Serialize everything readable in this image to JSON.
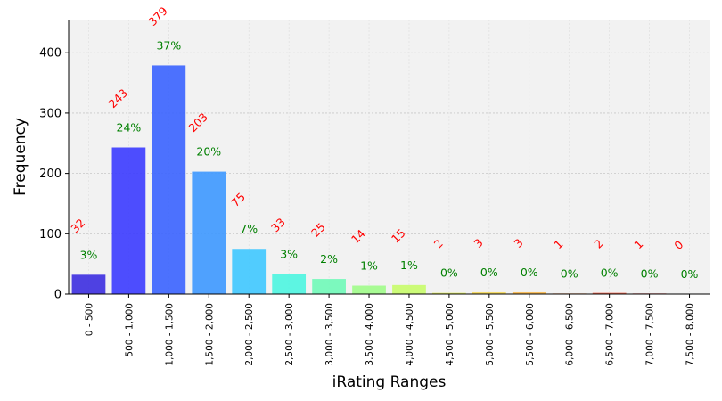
{
  "chart_data": {
    "type": "bar",
    "xlabel": "iRating Ranges",
    "ylabel": "Frequency",
    "ylim": [
      0,
      455
    ],
    "yticks": [
      0,
      100,
      200,
      300,
      400
    ],
    "grid": true,
    "categories": [
      "0 - 500",
      "500 - 1,000",
      "1,000 - 1,500",
      "1,500 - 2,000",
      "2,000 - 2,500",
      "2,500 - 3,000",
      "3,000 - 3,500",
      "3,500 - 4,000",
      "4,000 - 4,500",
      "4,500 - 5,000",
      "5,000 - 5,500",
      "5,500 - 6,000",
      "6,000 - 6,500",
      "6,500 - 7,000",
      "7,000 - 7,500",
      "7,500 - 8,000"
    ],
    "values": [
      32,
      243,
      379,
      203,
      75,
      33,
      25,
      14,
      15,
      2,
      3,
      3,
      1,
      2,
      1,
      0
    ],
    "count_labels": [
      "32",
      "243",
      "379",
      "203",
      "75",
      "33",
      "25",
      "14",
      "15",
      "2",
      "3",
      "3",
      "1",
      "2",
      "1",
      "0"
    ],
    "percent_labels": [
      "3%",
      "24%",
      "37%",
      "20%",
      "7%",
      "3%",
      "2%",
      "1%",
      "1%",
      "0%",
      "0%",
      "0%",
      "0%",
      "0%",
      "0%",
      "0%"
    ],
    "colors": [
      "#3c2ee0",
      "#3b3bff",
      "#3a63ff",
      "#3d98ff",
      "#3fc8ff",
      "#4df5e0",
      "#6ffab8",
      "#a0fc8a",
      "#c8fc6a",
      "#e4f25a",
      "#f5d85a",
      "#f8b84d",
      "#f88a45",
      "#f05a40",
      "#e03a3a",
      "#c83232"
    ],
    "count_label_color": "#ff0000",
    "percent_label_color": "#008000",
    "plot_background": "#f2f2f2"
  }
}
